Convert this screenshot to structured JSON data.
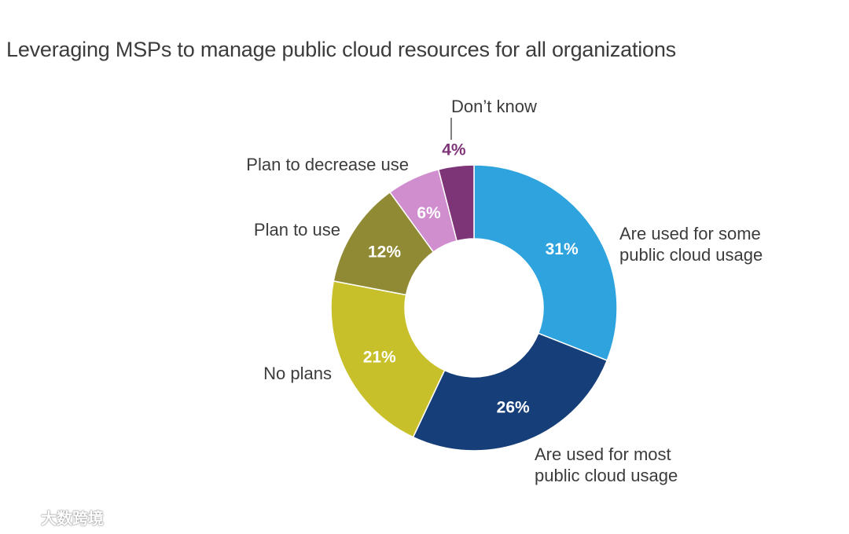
{
  "chart_data": {
    "type": "pie",
    "donut": true,
    "title": "Leveraging MSPs to manage public cloud resources for all organizations",
    "slices": [
      {
        "label": "Are used for some public cloud usage",
        "label_lines": [
          "Are used for some",
          "public cloud usage"
        ],
        "value": 31,
        "value_label": "31%",
        "color": "#2ea3de"
      },
      {
        "label": "Are used for most public cloud usage",
        "label_lines": [
          "Are used for most",
          "public cloud usage"
        ],
        "value": 26,
        "value_label": "26%",
        "color": "#163e78"
      },
      {
        "label": "No plans",
        "label_lines": [
          "No plans"
        ],
        "value": 21,
        "value_label": "21%",
        "color": "#c8c02a"
      },
      {
        "label": "Plan to use",
        "label_lines": [
          "Plan to use"
        ],
        "value": 12,
        "value_label": "12%",
        "color": "#918a34"
      },
      {
        "label": "Plan to decrease use",
        "label_lines": [
          "Plan to decrease use"
        ],
        "value": 6,
        "value_label": "6%",
        "color": "#d08ecf"
      },
      {
        "label": "Don’t know",
        "label_lines": [
          "Don’t know"
        ],
        "value": 4,
        "value_label": "4%",
        "color": "#7e3577"
      }
    ]
  },
  "watermark": {
    "text": "大数跨境"
  }
}
